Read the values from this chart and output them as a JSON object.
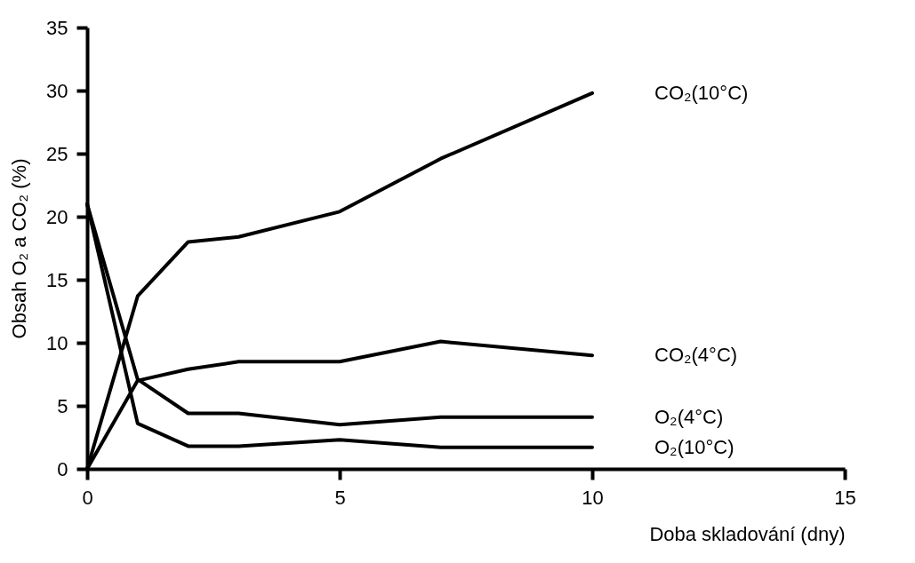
{
  "chart_data": {
    "type": "line",
    "xlabel": "Doba skladování (dny)",
    "ylabel": "Obsah O₂ a CO₂ (%)",
    "x": [
      0,
      1,
      2,
      3,
      5,
      7,
      10
    ],
    "series": [
      {
        "name": "CO₂(10°C)",
        "color": "#000000",
        "values": [
          0,
          13.7,
          18,
          18.4,
          20.4,
          24.6,
          29.8
        ]
      },
      {
        "name": "CO₂(4°C)",
        "color": "#000000",
        "values": [
          0,
          7.0,
          7.9,
          8.5,
          8.5,
          10.1,
          9.0
        ]
      },
      {
        "name": "O₂(4°C)",
        "color": "#000000",
        "values": [
          21,
          7.1,
          4.4,
          4.4,
          3.5,
          4.1,
          4.1
        ]
      },
      {
        "name": "O₂(10°C)",
        "color": "#000000",
        "values": [
          21,
          3.6,
          1.8,
          1.8,
          2.3,
          1.7,
          1.7
        ]
      }
    ],
    "xlim": [
      0,
      15
    ],
    "xticks": [
      0,
      5,
      10,
      15
    ],
    "ylim": [
      0,
      35
    ],
    "yticks": [
      0,
      5,
      10,
      15,
      20,
      25,
      30,
      35
    ],
    "grid": false,
    "legend": false,
    "marker": "none",
    "line_style": "solid"
  }
}
